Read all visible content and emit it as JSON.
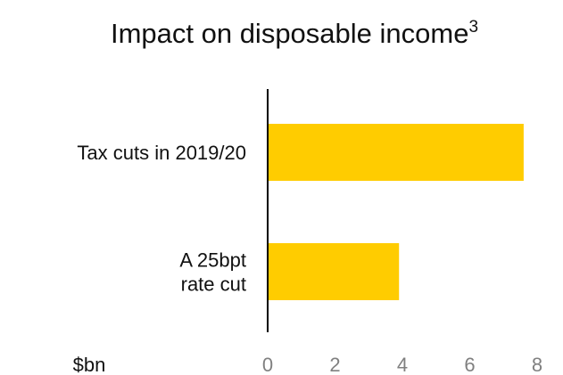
{
  "chart_data": {
    "type": "bar",
    "orientation": "horizontal",
    "title": "Impact on disposable income",
    "title_superscript": "3",
    "categories": [
      [
        "Tax cuts in 2019/20"
      ],
      [
        "A 25bpt",
        "rate cut"
      ]
    ],
    "values": [
      7.6,
      3.9
    ],
    "unit_label": "$bn",
    "xlim": [
      0,
      8
    ],
    "x_ticks": [
      "0",
      "2",
      "4",
      "6",
      "8"
    ],
    "grid": false,
    "legend": "none",
    "bar_color": "#FFCC00",
    "axis_color": "#000000",
    "tick_color": "#808080"
  }
}
